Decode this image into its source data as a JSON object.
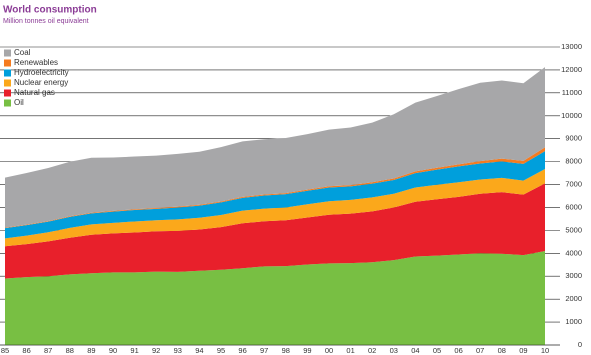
{
  "chart_data": {
    "type": "stacked_area",
    "title": "World consumption",
    "subtitle": "Million tonnes oil equivalent",
    "categories": [
      "85",
      "86",
      "87",
      "88",
      "89",
      "90",
      "91",
      "92",
      "93",
      "94",
      "95",
      "96",
      "97",
      "98",
      "99",
      "00",
      "01",
      "02",
      "03",
      "04",
      "05",
      "06",
      "07",
      "08",
      "09",
      "10"
    ],
    "series": [
      {
        "name": "Coal",
        "color": "#a7a7a9",
        "values": [
          2180,
          2250,
          2320,
          2380,
          2400,
          2330,
          2300,
          2290,
          2300,
          2310,
          2370,
          2420,
          2410,
          2400,
          2420,
          2470,
          2510,
          2600,
          2800,
          3000,
          3130,
          3280,
          3420,
          3410,
          3390,
          3500
        ]
      },
      {
        "name": "Renewables",
        "color": "#f47b20",
        "values": [
          20,
          22,
          24,
          26,
          28,
          30,
          32,
          34,
          36,
          38,
          40,
          42,
          44,
          48,
          50,
          54,
          56,
          62,
          66,
          72,
          80,
          90,
          100,
          120,
          130,
          160
        ]
      },
      {
        "name": "Hydroelectricity",
        "color": "#009fdc",
        "values": [
          450,
          460,
          460,
          480,
          480,
          490,
          500,
          500,
          520,
          530,
          550,
          560,
          570,
          580,
          590,
          600,
          590,
          600,
          600,
          630,
          660,
          690,
          700,
          720,
          730,
          780
        ]
      },
      {
        "name": "Nuclear energy",
        "color": "#fba81b",
        "values": [
          340,
          370,
          400,
          430,
          450,
          460,
          480,
          480,
          500,
          510,
          530,
          550,
          550,
          560,
          580,
          590,
          600,
          610,
          600,
          620,
          630,
          640,
          620,
          620,
          610,
          630
        ]
      },
      {
        "name": "Natural gas",
        "color": "#e8202b",
        "values": [
          1410,
          1440,
          1520,
          1600,
          1680,
          1700,
          1740,
          1760,
          1790,
          1800,
          1860,
          1960,
          1970,
          2000,
          2050,
          2120,
          2160,
          2220,
          2300,
          2390,
          2460,
          2510,
          2600,
          2690,
          2640,
          2950
        ]
      },
      {
        "name": "Oil",
        "color": "#78bf43",
        "values": [
          2900,
          2960,
          3000,
          3080,
          3130,
          3170,
          3170,
          3200,
          3190,
          3240,
          3280,
          3350,
          3430,
          3440,
          3510,
          3560,
          3570,
          3610,
          3700,
          3860,
          3900,
          3950,
          4000,
          3980,
          3920,
          4100
        ]
      }
    ],
    "ylim": [
      0,
      13000
    ],
    "yticks": [
      0,
      1000,
      2000,
      3000,
      4000,
      5000,
      6000,
      7000,
      8000,
      9000,
      10000,
      11000,
      12000,
      13000
    ],
    "grid": true,
    "legend": "top-left"
  }
}
